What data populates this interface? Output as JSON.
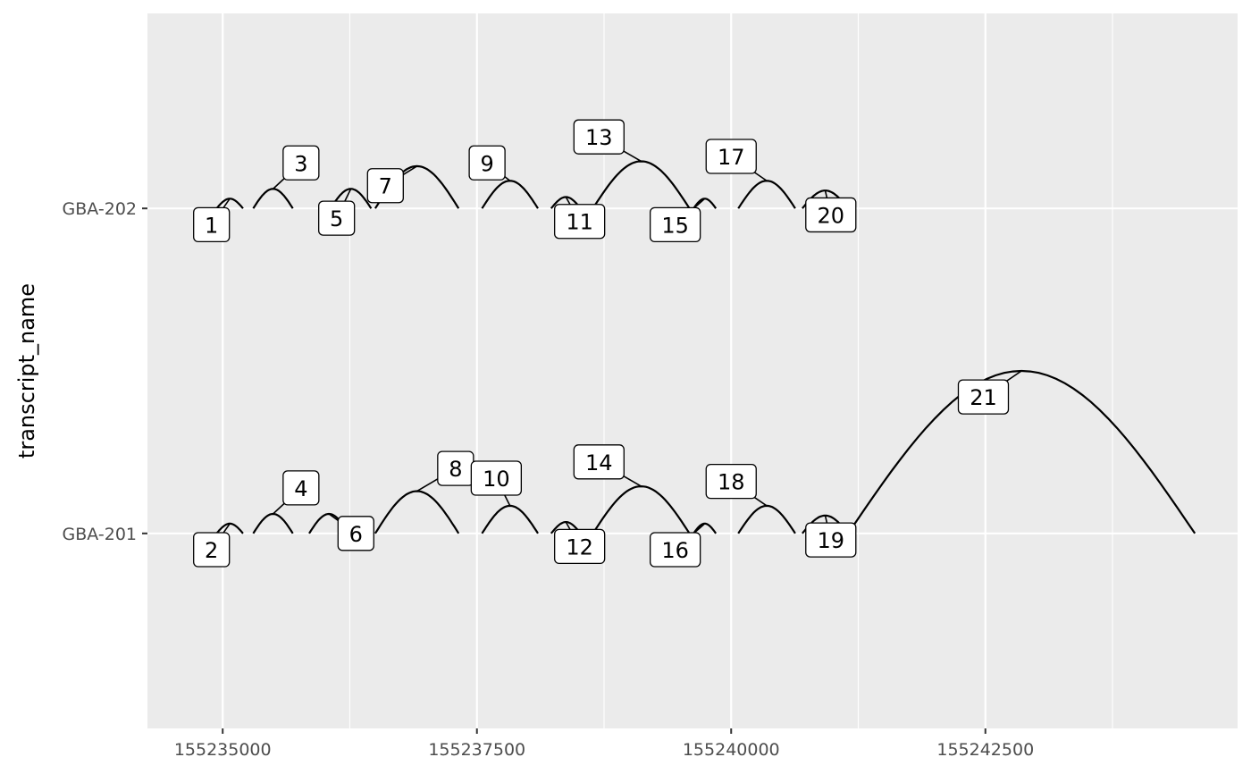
{
  "chart_data": {
    "type": "arc",
    "title": "",
    "xlabel": "",
    "ylabel": "transcript_name",
    "categories": [
      "GBA-201",
      "GBA-202"
    ],
    "xlim": [
      155234260,
      155244980
    ],
    "x_ticks": [
      155235000,
      155237500,
      155240000,
      155242500
    ],
    "x_tick_labels": [
      "155235000",
      "155237500",
      "155240000",
      "155242500"
    ],
    "grid": true,
    "legend": "none",
    "colors": {
      "panel": "#ebebeb",
      "grid": "#ffffff",
      "arc": "#000000",
      "label_fill": "#ffffff",
      "label_border": "#000000",
      "axis_text": "#4d4d4d"
    },
    "junctions": [
      {
        "id": "1",
        "transcript": "GBA-202",
        "start": 155234940,
        "end": 155235200,
        "height": 0.03,
        "label_x": 155234890,
        "label_offset": -0.05
      },
      {
        "id": "3",
        "transcript": "GBA-202",
        "start": 155235300,
        "end": 155235690,
        "height": 0.06,
        "label_x": 155235770,
        "label_offset": 0.14
      },
      {
        "id": "5",
        "transcript": "GBA-202",
        "start": 155236060,
        "end": 155236460,
        "height": 0.06,
        "label_x": 155236120,
        "label_offset": -0.03
      },
      {
        "id": "7",
        "transcript": "GBA-202",
        "start": 155236500,
        "end": 155237320,
        "height": 0.13,
        "label_x": 155236600,
        "label_offset": 0.07
      },
      {
        "id": "9",
        "transcript": "GBA-202",
        "start": 155237550,
        "end": 155238100,
        "height": 0.085,
        "label_x": 155237600,
        "label_offset": 0.14
      },
      {
        "id": "11",
        "transcript": "GBA-202",
        "start": 155238230,
        "end": 155238520,
        "height": 0.035,
        "label_x": 155238510,
        "label_offset": -0.04
      },
      {
        "id": "13",
        "transcript": "GBA-202",
        "start": 155238640,
        "end": 155239590,
        "height": 0.145,
        "label_x": 155238700,
        "label_offset": 0.22
      },
      {
        "id": "15",
        "transcript": "GBA-202",
        "start": 155239630,
        "end": 155239850,
        "height": 0.03,
        "label_x": 155239450,
        "label_offset": -0.05
      },
      {
        "id": "17",
        "transcript": "GBA-202",
        "start": 155240070,
        "end": 155240630,
        "height": 0.085,
        "label_x": 155240000,
        "label_offset": 0.16
      },
      {
        "id": "20",
        "transcript": "GBA-202",
        "start": 155240700,
        "end": 155241150,
        "height": 0.055,
        "label_x": 155240980,
        "label_offset": -0.02
      },
      {
        "id": "2",
        "transcript": "GBA-201",
        "start": 155234940,
        "end": 155235200,
        "height": 0.03,
        "label_x": 155234890,
        "label_offset": -0.05
      },
      {
        "id": "4",
        "transcript": "GBA-201",
        "start": 155235300,
        "end": 155235690,
        "height": 0.06,
        "label_x": 155235770,
        "label_offset": 0.14
      },
      {
        "id": "6",
        "transcript": "GBA-201",
        "start": 155235850,
        "end": 155236240,
        "height": 0.06,
        "label_x": 155236310,
        "label_offset": 0.0
      },
      {
        "id": "8",
        "transcript": "GBA-201",
        "start": 155236500,
        "end": 155237320,
        "height": 0.13,
        "label_x": 155237290,
        "label_offset": 0.2
      },
      {
        "id": "10",
        "transcript": "GBA-201",
        "start": 155237550,
        "end": 155238100,
        "height": 0.085,
        "label_x": 155237690,
        "label_offset": 0.17
      },
      {
        "id": "12",
        "transcript": "GBA-201",
        "start": 155238230,
        "end": 155238520,
        "height": 0.035,
        "label_x": 155238510,
        "label_offset": -0.04
      },
      {
        "id": "14",
        "transcript": "GBA-201",
        "start": 155238640,
        "end": 155239590,
        "height": 0.145,
        "label_x": 155238700,
        "label_offset": 0.22
      },
      {
        "id": "16",
        "transcript": "GBA-201",
        "start": 155239630,
        "end": 155239850,
        "height": 0.03,
        "label_x": 155239450,
        "label_offset": -0.05
      },
      {
        "id": "18",
        "transcript": "GBA-201",
        "start": 155240070,
        "end": 155240630,
        "height": 0.085,
        "label_x": 155240000,
        "label_offset": 0.16
      },
      {
        "id": "19",
        "transcript": "GBA-201",
        "start": 155240700,
        "end": 155241150,
        "height": 0.055,
        "label_x": 155240980,
        "label_offset": -0.02
      },
      {
        "id": "21",
        "transcript": "GBA-201",
        "start": 155241150,
        "end": 155244560,
        "height": 0.5,
        "label_x": 155242480,
        "label_offset": 0.42
      }
    ]
  }
}
